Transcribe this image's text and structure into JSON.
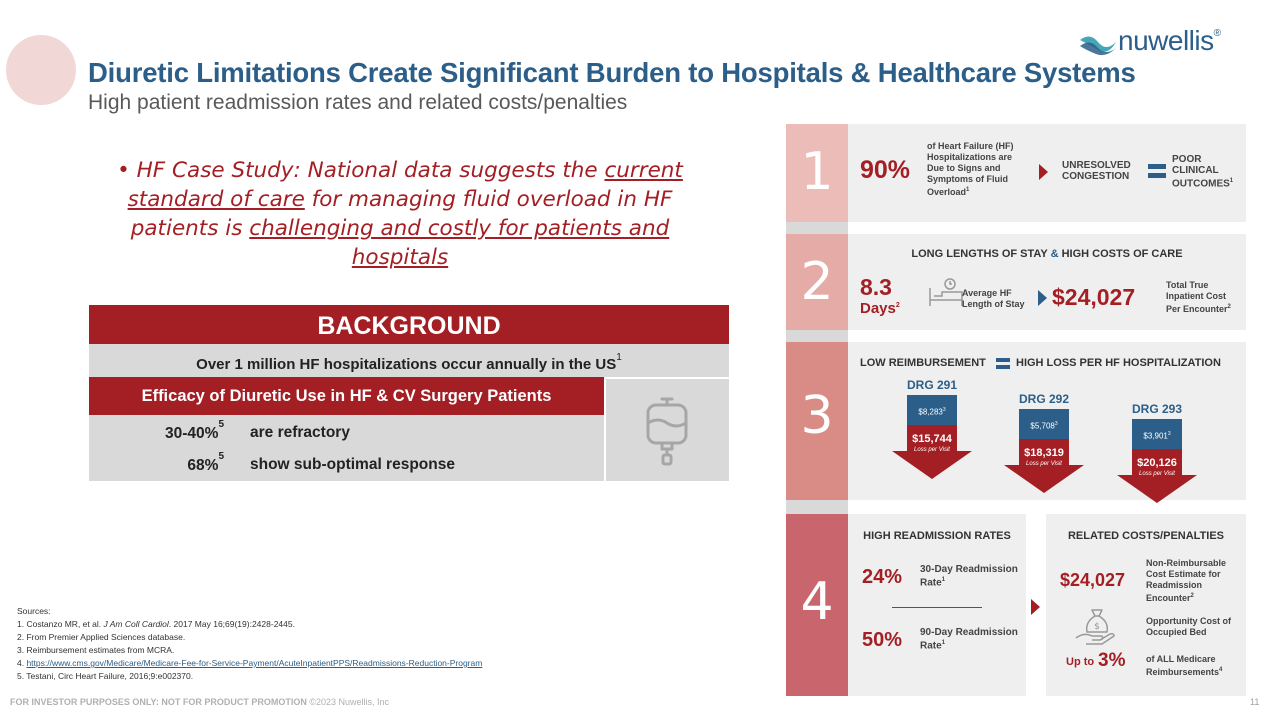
{
  "header": {
    "title": "Diuretic Limitations Create Significant Burden to Hospitals & Healthcare Systems",
    "subtitle": "High patient readmission rates and related costs/penalties",
    "logo_text": "nuwellis",
    "logo_mark": "®"
  },
  "case_study": {
    "bullet": "•",
    "part1": "HF Case Study:  National data suggests the",
    "link1": "current standard of care",
    "part2": "for managing fluid overload in HF patients is",
    "link2": "challenging and costly for patients and hospitals"
  },
  "background": {
    "heading": "BACKGROUND",
    "stat": "Over 1 million HF hospitalizations occur annually in the US",
    "stat_ref": "1",
    "efficacy_heading": "Efficacy of Diuretic Use in HF & CV Surgery Patients",
    "rows": [
      {
        "pct": "30-40%",
        "ref": "5",
        "desc": "are refractory"
      },
      {
        "pct": "68%",
        "ref": "5",
        "desc": "show sub-optimal response"
      }
    ],
    "icon": "iv-bag-icon"
  },
  "sources": {
    "heading": "Sources:",
    "s1a": "1. Costanzo MR, et al. ",
    "s1b": "J Am Coll Cardiol",
    "s1c": ". 2017 May 16;69(19):2428-2445.",
    "s2": "2. From Premier Applied Sciences database.",
    "s3": "3. Reimbursement estimates from MCRA.",
    "s4a": "4. ",
    "s4link": "https://www.cms.gov/Medicare/Medicare-Fee-for-Service-Payment/AcuteInpatientPPS/Readmissions-Reduction-Program",
    "s5": "5. Testani, Circ Heart Failure, 2016;9:e002370."
  },
  "footer": {
    "text": "FOR INVESTOR PURPOSES ONLY: NOT FOR PRODUCT PROMOTION",
    "copy": " ©2023 Nuwellis, Inc",
    "page": "11"
  },
  "infographic": {
    "s1": {
      "num": "1",
      "pct": "90%",
      "desc": "of Heart Failure (HF) Hospitalizations are Due to Signs and Symptoms of Fluid Overload",
      "ref": "1",
      "left_label": "UNRESOLVED CONGESTION",
      "right_label": "POOR CLINICAL OUTCOMES",
      "right_ref": "1"
    },
    "s2": {
      "num": "2",
      "title_a": "LONG LENGTHS OF STAY ",
      "title_amp": "&",
      "title_b": " HIGH COSTS OF CARE",
      "days_value": "8.3",
      "days_label": "Days",
      "days_ref": "2",
      "los_label": "Average HF Length of Stay",
      "cost": "$24,027",
      "cost_label": "Total True Inpatient Cost Per Encounter",
      "cost_ref": "2"
    },
    "s3": {
      "num": "3",
      "title_a": "LOW REIMBURSEMENT",
      "title_b": "HIGH LOSS PER HF HOSPITALIZATION",
      "loss_label": "Loss per Visit",
      "drgs": [
        {
          "label": "DRG 291",
          "reimb": "$8,283",
          "ref": "3",
          "loss": "$15,744"
        },
        {
          "label": "DRG 292",
          "reimb": "$5,708",
          "ref": "3",
          "loss": "$18,319"
        },
        {
          "label": "DRG 293",
          "reimb": "$3,901",
          "ref": "3",
          "loss": "$20,126"
        }
      ]
    },
    "s4": {
      "num": "4",
      "left_title": "HIGH READMISSION RATES",
      "r1_pct": "24%",
      "r1_label": "30-Day Readmission Rate",
      "r1_ref": "1",
      "r2_pct": "50%",
      "r2_label": "90-Day Readmission Rate",
      "r2_ref": "1",
      "right_title": "RELATED COSTS/PENALTIES",
      "cost": "$24,027",
      "cost_label": "Non-Reimbursable Cost Estimate for Readmission Encounter",
      "cost_ref": "2",
      "opp_label": "Opportunity Cost of Occupied Bed",
      "upto": "Up to",
      "upto_pct": "3%",
      "penalty_label": "of ALL Medicare Reimbursements",
      "penalty_ref": "4"
    }
  },
  "colors": {
    "brand_blue": "#2b5e88",
    "accent_red": "#a31f24",
    "panel_gray": "#efefef",
    "band_pink": "#e9b7b3"
  }
}
